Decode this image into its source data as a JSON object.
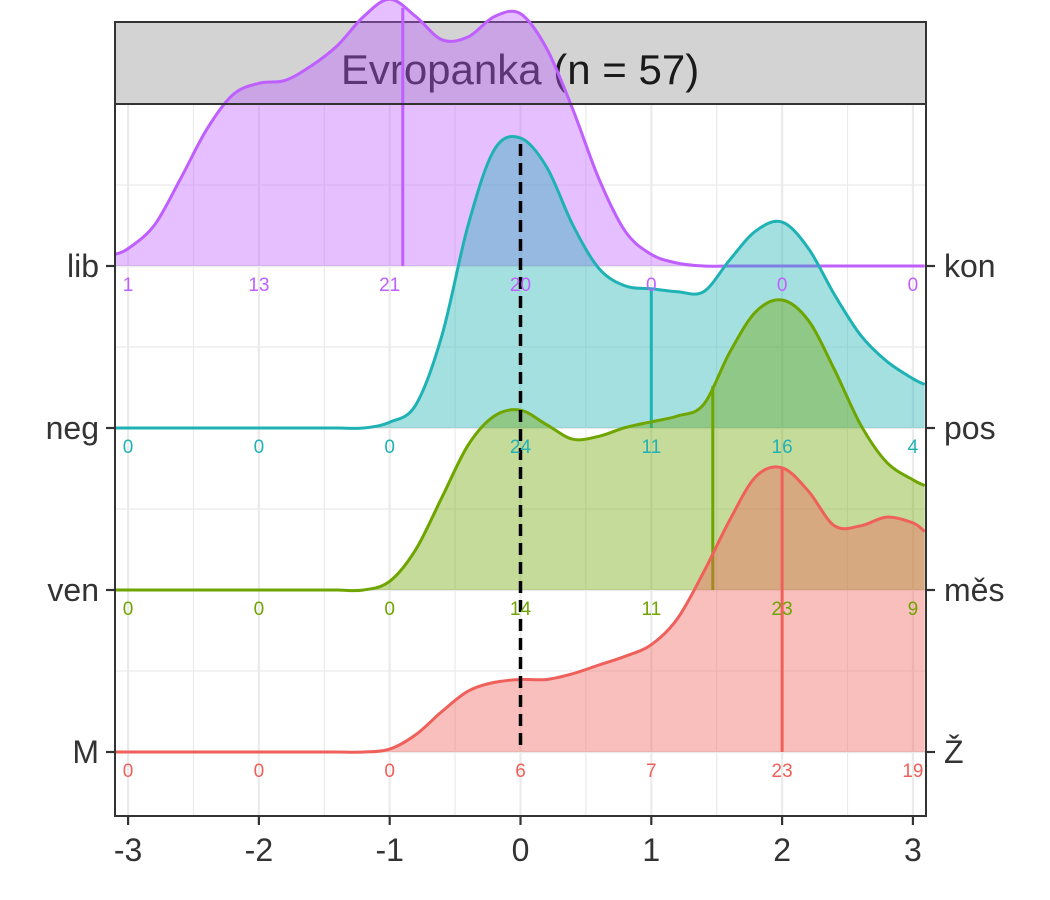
{
  "chart_data": {
    "type": "ridgeline-density",
    "title": "Evropanka (n = 57)",
    "xlabel": "",
    "ylabel": "",
    "xlim": [
      -3.1,
      3.1
    ],
    "x_ticks": [
      -3,
      -2,
      -1,
      0,
      1,
      2,
      3
    ],
    "x_tick_labels": [
      "-3",
      "-2",
      "-1",
      "0",
      "1",
      "2",
      "3"
    ],
    "reference_line": {
      "x": 0,
      "style": "dashed",
      "color": "#000000"
    },
    "grid": true,
    "count_positions": [
      -3,
      -2,
      -1,
      0,
      1,
      2,
      3
    ],
    "density_x": [
      -3.1,
      -3.0,
      -2.8,
      -2.6,
      -2.4,
      -2.2,
      -2.0,
      -1.8,
      -1.6,
      -1.4,
      -1.2,
      -1.0,
      -0.8,
      -0.6,
      -0.4,
      -0.2,
      0.0,
      0.2,
      0.4,
      0.6,
      0.8,
      1.0,
      1.2,
      1.4,
      1.6,
      1.8,
      2.0,
      2.2,
      2.4,
      2.6,
      2.8,
      3.0,
      3.1
    ],
    "series": [
      {
        "left_label": "lib",
        "right_label": "kon",
        "color": "#bf5fff",
        "median": -0.9,
        "counts": [
          1,
          13,
          21,
          20,
          0,
          0,
          0
        ],
        "density": [
          0.04,
          0.06,
          0.14,
          0.3,
          0.47,
          0.59,
          0.63,
          0.64,
          0.69,
          0.76,
          0.86,
          0.92,
          0.86,
          0.78,
          0.79,
          0.86,
          0.87,
          0.75,
          0.54,
          0.3,
          0.12,
          0.04,
          0.01,
          0,
          0,
          0,
          0,
          0,
          0,
          0,
          0,
          0,
          0
        ]
      },
      {
        "left_label": "neg",
        "right_label": "pos",
        "color": "#1fb2b5",
        "median": 1.0,
        "counts": [
          0,
          0,
          0,
          24,
          11,
          16,
          4
        ],
        "density": [
          0,
          0,
          0,
          0,
          0,
          0,
          0,
          0,
          0,
          0,
          0,
          0.02,
          0.08,
          0.32,
          0.7,
          0.96,
          1.0,
          0.9,
          0.7,
          0.55,
          0.49,
          0.48,
          0.47,
          0.47,
          0.58,
          0.68,
          0.71,
          0.62,
          0.46,
          0.32,
          0.23,
          0.17,
          0.15
        ]
      },
      {
        "left_label": "ven",
        "right_label": "měs",
        "color": "#6ea500",
        "median": 1.47,
        "counts": [
          0,
          0,
          0,
          14,
          11,
          23,
          9
        ],
        "density": [
          0,
          0,
          0,
          0,
          0,
          0,
          0,
          0,
          0,
          0,
          0,
          0.03,
          0.14,
          0.32,
          0.5,
          0.6,
          0.62,
          0.57,
          0.52,
          0.53,
          0.56,
          0.58,
          0.6,
          0.64,
          0.82,
          0.96,
          1.0,
          0.93,
          0.76,
          0.57,
          0.44,
          0.38,
          0.36
        ]
      },
      {
        "left_label": "M",
        "right_label": "Ž",
        "color": "#f0605b",
        "median": 2.0,
        "counts": [
          0,
          0,
          0,
          6,
          7,
          23,
          19
        ],
        "density": [
          0,
          0,
          0,
          0,
          0,
          0,
          0,
          0,
          0,
          0,
          0,
          0.01,
          0.06,
          0.14,
          0.21,
          0.24,
          0.25,
          0.25,
          0.27,
          0.3,
          0.33,
          0.37,
          0.46,
          0.62,
          0.8,
          0.95,
          0.98,
          0.9,
          0.78,
          0.78,
          0.81,
          0.79,
          0.76
        ]
      }
    ]
  }
}
